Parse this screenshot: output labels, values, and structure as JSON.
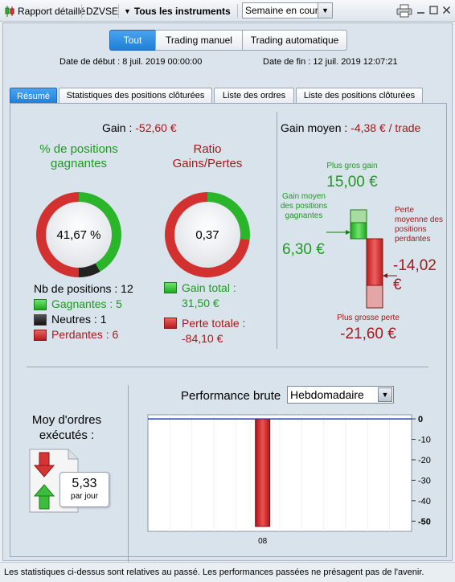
{
  "toolbar": {
    "report_label": "Rapport détaillé",
    "symbol": "DZVSE",
    "instruments_label": "Tous les instruments",
    "period_select": "Semaine en cours"
  },
  "segments": [
    {
      "label": "Tout",
      "active": true
    },
    {
      "label": "Trading manuel",
      "active": false
    },
    {
      "label": "Trading automatique",
      "active": false
    }
  ],
  "dates": {
    "start": "Date de début : 8 juil. 2019 00:00:00",
    "end": "Date de fin : 12 juil. 2019 12:07:21"
  },
  "tabs": [
    {
      "label": "Résumé",
      "active": true
    },
    {
      "label": "Statistiques des positions clôturées",
      "active": false
    },
    {
      "label": "Liste des ordres",
      "active": false
    },
    {
      "label": "Liste des positions clôturées",
      "active": false
    }
  ],
  "summary": {
    "gain_label": "Gain :",
    "gain_value": "-52,60 €",
    "win_pct_title": "% de positions gagnantes",
    "win_pct_value": "41,67 %",
    "win_fraction": 0.4167,
    "neutral_fraction": 0.0833,
    "ratio_title": "Ratio Gains/Pertes",
    "ratio_value": "0,37",
    "ratio_fraction": 0.27,
    "nb_positions": "Nb de positions : 12",
    "gagnantes": "Gagnantes : 5",
    "neutres": "Neutres : 1",
    "perdantes": "Perdantes : 6",
    "gain_total_label": "Gain total :",
    "gain_total_value": "31,50 €",
    "perte_totale_label": "Perte totale :",
    "perte_totale_value": "-84,10 €"
  },
  "gain_moyen": {
    "label": "Gain moyen :",
    "value": "-4,38 € / trade",
    "plus_gros_gain_label": "Plus gros gain",
    "plus_gros_gain_value": "15,00 €",
    "gain_moyen_gagnantes_label": "Gain moyen des positions gagnantes",
    "gain_moyen_gagnantes_value": "6,30 €",
    "perte_moyenne_label": "Perte moyenne des positions perdantes",
    "perte_moyenne_value": "-14,02 €",
    "plus_grosse_perte_label": "Plus grosse perte",
    "plus_grosse_perte_value": "-21,60 €"
  },
  "orders": {
    "title": "Moy d'ordres exécutés :",
    "value": "5,33",
    "unit": "par jour"
  },
  "performance": {
    "title": "Performance brute",
    "period": "Hebdomadaire"
  },
  "chart_data": {
    "type": "bar",
    "categories": [
      "08"
    ],
    "values": [
      -52.6
    ],
    "ylim": [
      -55,
      2
    ],
    "yticks": [
      0,
      -10,
      -20,
      -30,
      -40,
      -50
    ],
    "ytick_labels": [
      "0",
      "-10",
      "-20",
      "-30",
      "-40",
      "-50"
    ],
    "bold_ticks": [
      0,
      -50
    ],
    "bar_color": "#c62020",
    "zero_line_color": "#2a3fb8"
  },
  "footer": {
    "text": "Les statistiques ci-dessus sont relatives au passé. Les performances passées ne présagent pas de l'avenir."
  }
}
